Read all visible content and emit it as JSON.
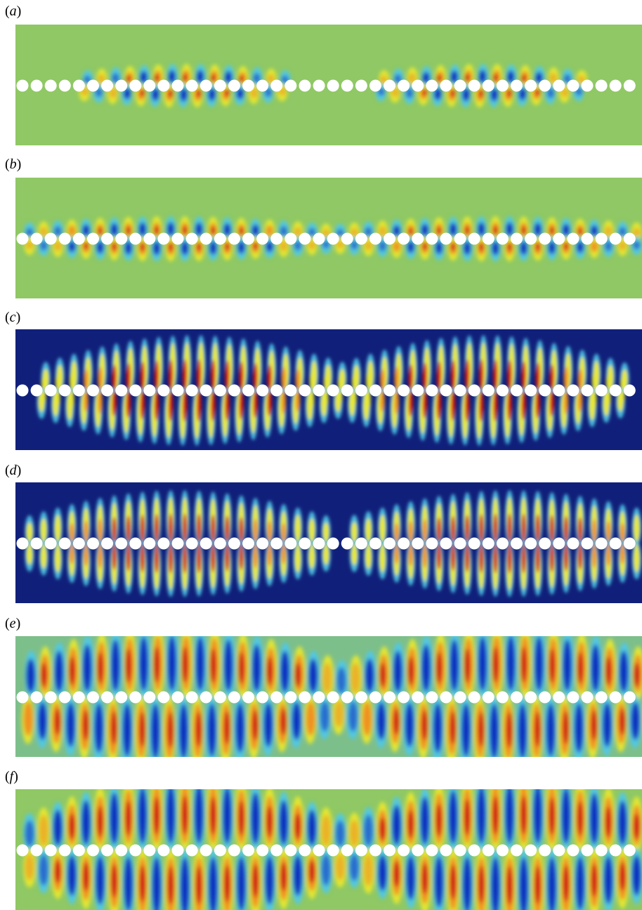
{
  "panels": [
    {
      "label_open": "(",
      "label_letter": "a",
      "label_close": ")",
      "colormap": "diverging",
      "background": "#8fc864",
      "lobe_style": "thin",
      "cavities": [
        {
          "start": 5,
          "end": 17
        },
        {
          "start": 26,
          "end": 38
        }
      ],
      "lobe_amplitude": 0.55,
      "tilt": "left"
    },
    {
      "label_open": "(",
      "label_letter": "b",
      "label_close": ")",
      "colormap": "diverging",
      "background": "#8fc864",
      "lobe_style": "thin",
      "cavities": [
        {
          "start": 1,
          "end": 19
        },
        {
          "start": 24,
          "end": 42
        }
      ],
      "lobe_amplitude": 0.6,
      "tilt": "none"
    },
    {
      "label_open": "(",
      "label_letter": "c",
      "label_close": ")",
      "colormap": "intensity",
      "background": "#10207a",
      "lobe_style": "wide",
      "cavities": [
        {
          "start": 3,
          "end": 20
        },
        {
          "start": 24,
          "end": 40
        }
      ],
      "lobe_amplitude": 0.85,
      "tilt": "left"
    },
    {
      "label_open": "(",
      "label_letter": "d",
      "label_close": ")",
      "colormap": "intensity",
      "background": "#10207a",
      "lobe_style": "wide",
      "cavities": [
        {
          "start": 2,
          "end": 19
        },
        {
          "start": 25,
          "end": 43
        }
      ],
      "lobe_amplitude": 0.8,
      "tilt": "none"
    },
    {
      "label_open": "(",
      "label_letter": "e",
      "label_close": ")",
      "colormap": "diverging",
      "background": "#7dbf8a",
      "lobe_style": "tall",
      "cavities": [
        {
          "start": 0,
          "end": 20
        },
        {
          "start": 24,
          "end": 44
        }
      ],
      "lobe_amplitude": 0.9,
      "tilt": "left"
    },
    {
      "label_open": "(",
      "label_letter": "f",
      "label_close": ")",
      "colormap": "diverging",
      "background": "#8fc864",
      "lobe_style": "tall",
      "cavities": [
        {
          "start": 2,
          "end": 20
        },
        {
          "start": 25,
          "end": 44
        }
      ],
      "lobe_amplitude": 1.0,
      "tilt": "none"
    }
  ],
  "rod_count": 45,
  "rod_color": "#ffffff",
  "colors": {
    "red": "#d01818",
    "orange": "#f09020",
    "yellow": "#e8e830",
    "cyan": "#50c8e8",
    "blue": "#1030c0",
    "dark_navy": "#10207a"
  }
}
